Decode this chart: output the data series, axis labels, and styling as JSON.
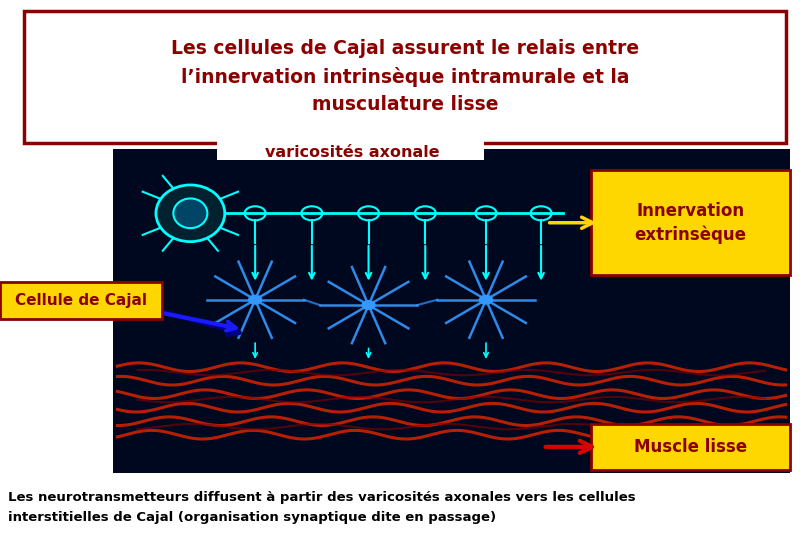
{
  "title_line1": "Les cellules de Cajal assurent le relais entre",
  "title_line2": "l’innervation intrinsèque intramurale et la",
  "title_line3": "musculature lisse",
  "title_color": "#8B0000",
  "title_box_edge_color": "#8B0000",
  "bg_color": "#FFFFFF",
  "label_varicosites": "varicosités axonale",
  "label_varicosites_color": "#8B0000",
  "label_innervation_text": "Innervation\nextrinsèque",
  "label_innervation_bg": "#FFD700",
  "label_innervation_color": "#8B0000",
  "label_cajal": "Cellule de Cajal",
  "label_cajal_bg": "#FFD700",
  "label_cajal_color": "#8B0000",
  "label_muscle": "Muscle lisse",
  "label_muscle_bg": "#FFD700",
  "label_muscle_color": "#8B0000",
  "footer_text": "Les neurotransmetteurs diffusent à partir des varicosités axonales vers les cellules\ninterstitielles de Cajal (organisation synaptique dite en passage)",
  "footer_color": "#000000",
  "image_bg": "#000820",
  "axon_color": "#00FFFF",
  "cajal_cell_color": "#3399FF",
  "muscle_color": "#CC2200",
  "arrow_color_cyan": "#00FFFF",
  "arrow_color_yellow": "#FFD700",
  "arrow_color_red": "#DD0000",
  "arrow_color_navy": "#000080"
}
